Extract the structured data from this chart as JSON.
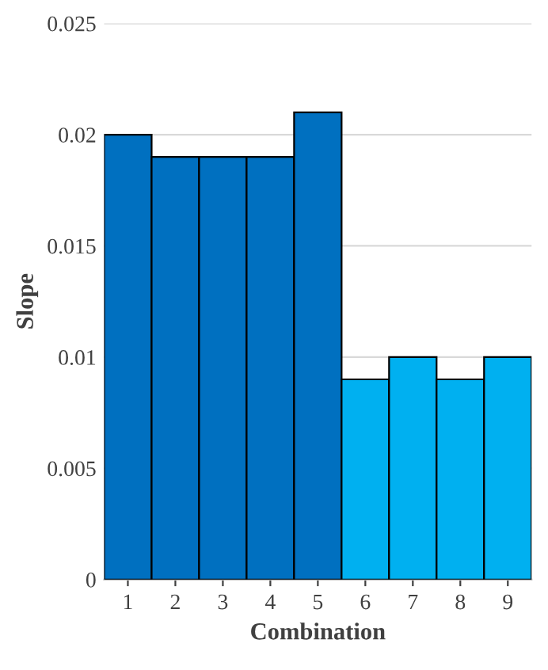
{
  "chart_data": {
    "type": "bar",
    "xlabel": "Combination",
    "ylabel": "Slope",
    "categories": [
      "1",
      "2",
      "3",
      "4",
      "5",
      "6",
      "7",
      "8",
      "9"
    ],
    "values": [
      0.02,
      0.019,
      0.019,
      0.019,
      0.021,
      0.009,
      0.01,
      0.009,
      0.01
    ],
    "colors": [
      "#0070c0",
      "#0070c0",
      "#0070c0",
      "#0070c0",
      "#0070c0",
      "#00b0f0",
      "#00b0f0",
      "#00b0f0",
      "#00b0f0"
    ],
    "ylim": [
      0,
      0.025
    ],
    "yticks": [
      0,
      0.005,
      0.01,
      0.015,
      0.02,
      0.025
    ],
    "grid": "y",
    "legend": false
  }
}
